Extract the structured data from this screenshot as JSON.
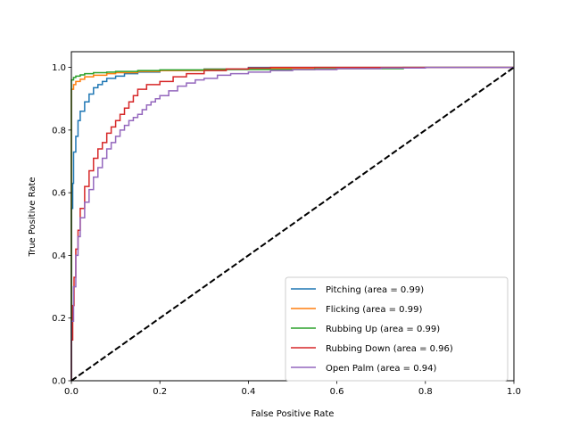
{
  "chart_data": {
    "type": "line",
    "title": "",
    "xlabel": "False Positive Rate",
    "ylabel": "True Positive Rate",
    "xlim": [
      0,
      1
    ],
    "ylim": [
      0,
      1.05
    ],
    "xticks": [
      "0.0",
      "0.2",
      "0.4",
      "0.6",
      "0.8",
      "1.0"
    ],
    "yticks": [
      "0.0",
      "0.2",
      "0.4",
      "0.6",
      "0.8",
      "1.0"
    ],
    "legend_position": "lower-right",
    "grid": false,
    "series": [
      {
        "name": "Pitching (area = 0.99)",
        "color": "#1f77b4",
        "points": [
          [
            0,
            0
          ],
          [
            0,
            0.55
          ],
          [
            0.003,
            0.63
          ],
          [
            0.005,
            0.73
          ],
          [
            0.01,
            0.78
          ],
          [
            0.015,
            0.83
          ],
          [
            0.02,
            0.86
          ],
          [
            0.03,
            0.89
          ],
          [
            0.04,
            0.915
          ],
          [
            0.05,
            0.935
          ],
          [
            0.06,
            0.945
          ],
          [
            0.07,
            0.955
          ],
          [
            0.08,
            0.965
          ],
          [
            0.1,
            0.972
          ],
          [
            0.12,
            0.98
          ],
          [
            0.15,
            0.985
          ],
          [
            0.2,
            0.99
          ],
          [
            0.3,
            0.995
          ],
          [
            0.4,
            1.0
          ],
          [
            1.0,
            1.0
          ]
        ]
      },
      {
        "name": "Flicking (area = 0.99)",
        "color": "#ff7f0e",
        "points": [
          [
            0,
            0
          ],
          [
            0,
            0.93
          ],
          [
            0.005,
            0.945
          ],
          [
            0.01,
            0.955
          ],
          [
            0.02,
            0.962
          ],
          [
            0.03,
            0.97
          ],
          [
            0.05,
            0.975
          ],
          [
            0.08,
            0.98
          ],
          [
            0.1,
            0.983
          ],
          [
            0.15,
            0.987
          ],
          [
            0.2,
            0.99
          ],
          [
            0.3,
            0.994
          ],
          [
            0.4,
            0.997
          ],
          [
            0.55,
            1.0
          ],
          [
            1.0,
            1.0
          ]
        ]
      },
      {
        "name": "Rubbing Up (area = 0.99)",
        "color": "#2ca02c",
        "points": [
          [
            0,
            0
          ],
          [
            0,
            0.96
          ],
          [
            0.005,
            0.968
          ],
          [
            0.01,
            0.972
          ],
          [
            0.02,
            0.976
          ],
          [
            0.03,
            0.98
          ],
          [
            0.05,
            0.983
          ],
          [
            0.08,
            0.985
          ],
          [
            0.1,
            0.987
          ],
          [
            0.15,
            0.99
          ],
          [
            0.2,
            0.992
          ],
          [
            0.3,
            0.993
          ],
          [
            0.5,
            0.993
          ],
          [
            0.55,
            0.995
          ],
          [
            0.6,
            0.996
          ],
          [
            0.75,
            1.0
          ],
          [
            1.0,
            1.0
          ]
        ]
      },
      {
        "name": "Rubbing Down (area = 0.96)",
        "color": "#d62728",
        "points": [
          [
            0,
            0
          ],
          [
            0,
            0.13
          ],
          [
            0.003,
            0.24
          ],
          [
            0.006,
            0.33
          ],
          [
            0.01,
            0.42
          ],
          [
            0.015,
            0.48
          ],
          [
            0.02,
            0.55
          ],
          [
            0.03,
            0.62
          ],
          [
            0.04,
            0.67
          ],
          [
            0.05,
            0.71
          ],
          [
            0.06,
            0.74
          ],
          [
            0.07,
            0.76
          ],
          [
            0.08,
            0.79
          ],
          [
            0.09,
            0.81
          ],
          [
            0.1,
            0.83
          ],
          [
            0.11,
            0.85
          ],
          [
            0.12,
            0.87
          ],
          [
            0.13,
            0.89
          ],
          [
            0.14,
            0.91
          ],
          [
            0.15,
            0.93
          ],
          [
            0.17,
            0.945
          ],
          [
            0.2,
            0.955
          ],
          [
            0.23,
            0.97
          ],
          [
            0.26,
            0.98
          ],
          [
            0.3,
            0.99
          ],
          [
            0.35,
            0.995
          ],
          [
            0.4,
            0.998
          ],
          [
            0.45,
            1.0
          ],
          [
            1.0,
            1.0
          ]
        ]
      },
      {
        "name": "Open Palm (area = 0.94)",
        "color": "#9467bd",
        "points": [
          [
            0,
            0
          ],
          [
            0,
            0.19
          ],
          [
            0.005,
            0.3
          ],
          [
            0.01,
            0.4
          ],
          [
            0.015,
            0.46
          ],
          [
            0.02,
            0.52
          ],
          [
            0.03,
            0.57
          ],
          [
            0.04,
            0.61
          ],
          [
            0.05,
            0.65
          ],
          [
            0.06,
            0.68
          ],
          [
            0.07,
            0.71
          ],
          [
            0.08,
            0.74
          ],
          [
            0.09,
            0.76
          ],
          [
            0.1,
            0.78
          ],
          [
            0.11,
            0.8
          ],
          [
            0.12,
            0.815
          ],
          [
            0.13,
            0.83
          ],
          [
            0.14,
            0.84
          ],
          [
            0.15,
            0.85
          ],
          [
            0.16,
            0.865
          ],
          [
            0.17,
            0.88
          ],
          [
            0.18,
            0.89
          ],
          [
            0.19,
            0.9
          ],
          [
            0.2,
            0.91
          ],
          [
            0.22,
            0.925
          ],
          [
            0.24,
            0.94
          ],
          [
            0.26,
            0.95
          ],
          [
            0.28,
            0.96
          ],
          [
            0.3,
            0.965
          ],
          [
            0.33,
            0.975
          ],
          [
            0.36,
            0.98
          ],
          [
            0.4,
            0.985
          ],
          [
            0.45,
            0.99
          ],
          [
            0.5,
            0.993
          ],
          [
            0.6,
            0.996
          ],
          [
            0.7,
            0.998
          ],
          [
            0.8,
            1.0
          ],
          [
            1.0,
            1.0
          ]
        ]
      },
      {
        "name": "",
        "color": "#000000",
        "style": "dashed",
        "points": [
          [
            0,
            0
          ],
          [
            1,
            1
          ]
        ]
      }
    ]
  }
}
